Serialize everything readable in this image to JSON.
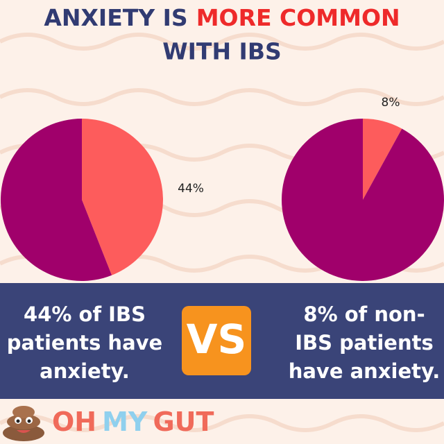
{
  "title": {
    "part1": "ANXIETY IS",
    "part2": "MORE COMMON",
    "line2": "WITH IBS"
  },
  "chart_data": [
    {
      "type": "pie",
      "values": [
        44,
        56
      ],
      "value_labels": [
        "44%",
        null
      ],
      "colors": [
        "#fd5c5c",
        "#a0006b"
      ]
    },
    {
      "type": "pie",
      "values": [
        8,
        92
      ],
      "value_labels": [
        "8%",
        null
      ],
      "colors": [
        "#fd5c5c",
        "#a0006b"
      ]
    }
  ],
  "comparison": {
    "left": [
      "44% of IBS",
      "patients have",
      "anxiety."
    ],
    "badge": "VS",
    "right": [
      "8% of non-",
      "IBS patients",
      "have  anxiety."
    ]
  },
  "logo": {
    "part1": "OH",
    "part2": "MY",
    "part3": "GUT"
  }
}
